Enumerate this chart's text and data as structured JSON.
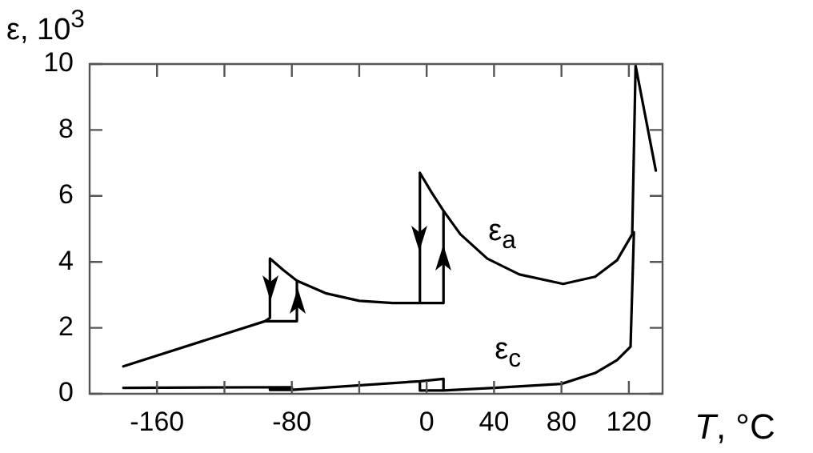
{
  "chart_data": {
    "type": "line",
    "xlabel": "T, °C",
    "ylabel": "ε, 10$^{3}$",
    "xlim": [
      -200,
      140
    ],
    "ylim": [
      0,
      10
    ],
    "xticks": [
      -160,
      {
        "value": -120,
        "label": null
      },
      -80,
      {
        "value": -40,
        "label": null
      },
      0,
      40,
      80,
      120
    ],
    "yticks": [
      0,
      2,
      4,
      6,
      8,
      10
    ],
    "grid": false,
    "legend": false,
    "marker": "none",
    "line_style": "solid",
    "series": [
      {
        "color": "#000000",
        "x": [
          -180,
          -96,
          -77,
          -77,
          -60,
          -40,
          -20,
          10,
          10,
          20,
          36,
          55,
          81,
          100,
          113,
          122,
          124,
          136,
          null,
          10,
          3,
          -4,
          -4,
          null,
          -77,
          -85,
          -93,
          -93,
          -96
        ],
        "values": [
          0.83,
          2.2,
          2.2,
          3.43,
          3.05,
          2.82,
          2.75,
          2.75,
          5.55,
          4.84,
          4.1,
          3.62,
          3.33,
          3.55,
          4.05,
          4.84,
          9.95,
          6.77,
          null,
          5.55,
          6.1,
          6.7,
          2.75,
          null,
          3.43,
          3.75,
          4.1,
          2.3,
          2.2
        ]
      },
      {
        "color": "#000000",
        "x": [
          -180,
          -80,
          -80,
          -4,
          10,
          10,
          40,
          80,
          100,
          113,
          121,
          123,
          null,
          -4,
          -4,
          10,
          null,
          -93,
          -93,
          -80
        ],
        "values": [
          0.18,
          0.2,
          0.12,
          0.38,
          0.45,
          0.1,
          0.18,
          0.3,
          0.63,
          1.02,
          1.43,
          4.9,
          null,
          0.38,
          0.1,
          0.1,
          null,
          0.2,
          0.12,
          0.12
        ]
      }
    ],
    "annotations": [
      "ε$_{a}$",
      "ε$_{c}$"
    ]
  }
}
